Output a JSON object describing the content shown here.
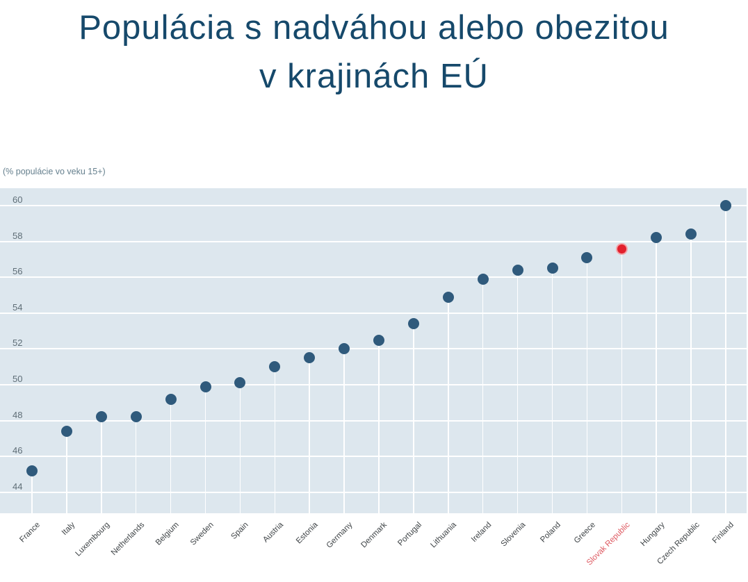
{
  "title_line1": "Populácia s nadváhou alebo obezitou",
  "title_line2": "v krajinách EÚ",
  "unit_note": "(% populácie vo veku 15+)",
  "chart_data": {
    "type": "scatter",
    "title": "Populácia s nadváhou alebo obezitou v krajinách EÚ",
    "subtitle": "(% populácie vo veku 15+)",
    "xlabel": "",
    "ylabel": "% populácie vo veku 15+",
    "categories": [
      "France",
      "Italy",
      "Luxembourg",
      "Netherlands",
      "Belgium",
      "Sweden",
      "Spain",
      "Austria",
      "Estonia",
      "Germany",
      "Denmark",
      "Portugal",
      "Lithuania",
      "Ireland",
      "Slovenia",
      "Poland",
      "Greece",
      "Slovak Republic",
      "Hungary",
      "Czech Republic",
      "Finland"
    ],
    "values": [
      45.2,
      47.4,
      48.2,
      48.2,
      49.2,
      49.9,
      50.1,
      51.0,
      51.5,
      52.0,
      52.5,
      53.4,
      54.9,
      55.9,
      56.4,
      56.5,
      57.1,
      57.6,
      58.2,
      58.4,
      60.0
    ],
    "highlight_category": "Slovak Republic",
    "yticks": [
      44,
      46,
      48,
      50,
      52,
      54,
      56,
      58,
      60
    ],
    "ylim": [
      43.4,
      61.0
    ],
    "grid": true,
    "legend": false,
    "colors": {
      "dot": "#2f5a7c",
      "highlight_dot": "#e2202d",
      "highlight_ring": "#f2a4a9",
      "plot_background": "#dde7ee",
      "gridline": "#ffffff",
      "title": "#16496b",
      "axis_label": "#5f6e77",
      "category_label": "#3f4447",
      "highlight_label": "#de5a62"
    }
  }
}
